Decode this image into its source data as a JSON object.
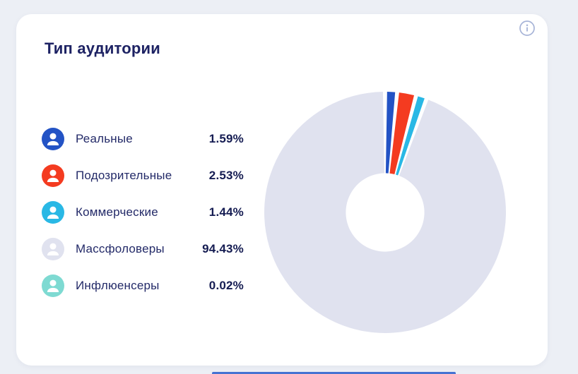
{
  "page": {
    "background_color": "#eceff5",
    "bottom_partial_element_color": "#4673d2"
  },
  "card": {
    "title": "Тип аудитории",
    "title_color": "#1d2263",
    "info_icon_color": "#a6b3d7"
  },
  "chart_data": {
    "type": "pie",
    "title": "Тип аудитории",
    "donut": true,
    "inner_radius_ratio": 0.325,
    "start_angle_deg": 0,
    "direction": "clockwise",
    "pad_angle_deg": 0.95,
    "legend_position": "left",
    "categories": [
      "Реальные",
      "Подозрительные",
      "Коммерческие",
      "Массфоловеры",
      "Инфлюенсеры"
    ],
    "values": [
      1.59,
      2.53,
      1.44,
      94.43,
      0.02
    ],
    "labels": [
      "1.59%",
      "2.53%",
      "1.44%",
      "94.43%",
      "0.02%"
    ],
    "colors": [
      "#2353c5",
      "#f43b20",
      "#29b8e5",
      "#e0e2ef",
      "#7edad2"
    ]
  }
}
